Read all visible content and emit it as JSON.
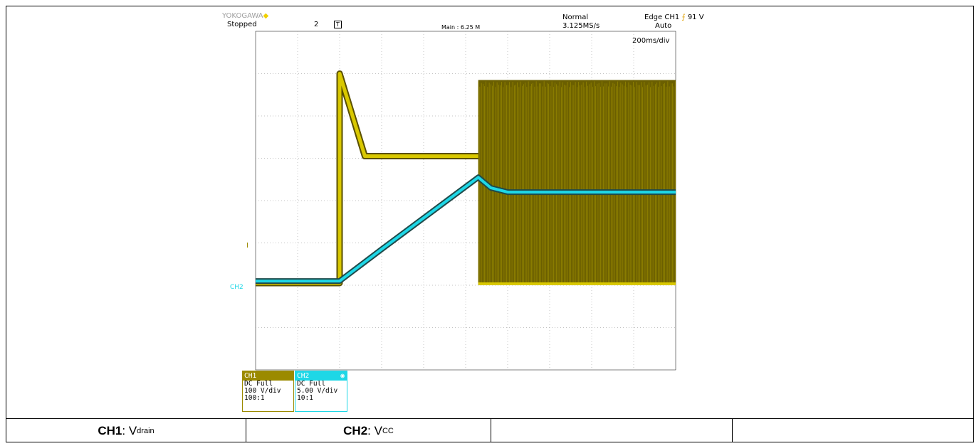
{
  "header": {
    "brand": "YOKOGAWA",
    "status": "Stopped",
    "acq_count": "2",
    "trigger_mode": "Normal",
    "sample_rate": "3.125MS/s",
    "trigger_source": "Edge CH1",
    "trigger_level": "91 V",
    "trigger_sweep": "Auto",
    "record_length": "Main : 6.25 M",
    "timebase": "200ms/div"
  },
  "markers": {
    "trigger_pos": "T",
    "trigger_level_marker": "I",
    "ch_ground": "CH2"
  },
  "channels": [
    {
      "name": "CH1",
      "coupling": "DC Full",
      "scale": "100 V/div",
      "probe": "100:1",
      "color": "#9b8a00"
    },
    {
      "name": "CH2",
      "coupling": "DC Full",
      "scale": "5.00 V/div",
      "probe": "10:1",
      "color": "#1ed7e6"
    }
  ],
  "footer": {
    "cell1_bold": "CH1",
    "cell1_var": "V",
    "cell1_sub": "drain",
    "cell2_bold": "CH2",
    "cell2_var": "V",
    "cell2_sub": "CC"
  },
  "chart_data": {
    "type": "line",
    "title": "",
    "xlabel": "",
    "ylabel": "",
    "x_unit": "div",
    "y_unit": "div",
    "xlim": [
      0,
      10
    ],
    "ylim": [
      0,
      8
    ],
    "grid": true,
    "series": [
      {
        "name": "CH1",
        "color": "#d9c800",
        "points": [
          [
            0,
            2.05
          ],
          [
            2.0,
            2.05
          ],
          [
            2.0,
            7.0
          ],
          [
            2.6,
            5.05
          ],
          [
            5.3,
            5.05
          ]
        ],
        "switching_band": {
          "x_start": 5.3,
          "x_end": 10.0,
          "y_low": 2.0,
          "y_high": 6.85
        }
      },
      {
        "name": "CH2",
        "color": "#1ed7e6",
        "points": [
          [
            0,
            2.1
          ],
          [
            2.0,
            2.1
          ],
          [
            3.0,
            2.85
          ],
          [
            5.3,
            4.55
          ],
          [
            5.6,
            4.3
          ],
          [
            6.0,
            4.2
          ],
          [
            10.0,
            4.2
          ]
        ]
      }
    ]
  }
}
